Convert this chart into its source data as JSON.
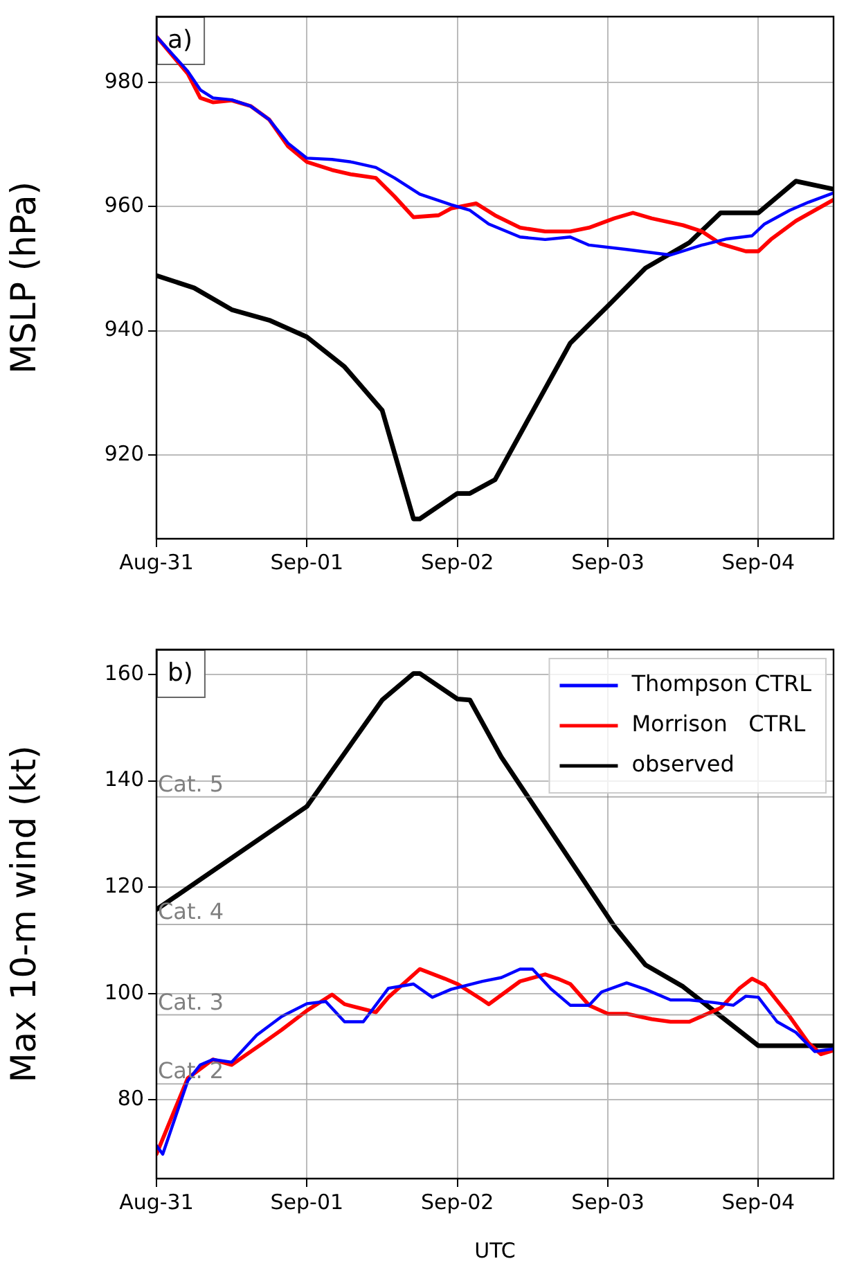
{
  "chart_data": [
    {
      "type": "line",
      "ylabel": "MSLP (hPa)",
      "annotations": [
        "a)"
      ],
      "xlim": [
        "--08-31",
        "--09-04T12:00"
      ],
      "xticks": [
        {
          "value": "--08-31",
          "label": "Aug-31"
        },
        {
          "value": "--09-01",
          "label": "Sep-01"
        },
        {
          "value": "--09-02",
          "label": "Sep-02"
        },
        {
          "value": "--09-03",
          "label": "Sep-03"
        },
        {
          "value": "--09-04",
          "label": "Sep-04"
        }
      ],
      "ylim": [
        906.5,
        990.6
      ],
      "yticks": [
        920,
        940,
        960,
        980
      ],
      "grid": true,
      "legend": false,
      "marker": "none",
      "line_style": "solid",
      "series": [
        {
          "color": "#0000ff",
          "x": [
            "--08-31T00:00",
            "--08-31T05:00",
            "--08-31T07:00",
            "--08-31T09:00",
            "--08-31T12:00",
            "--08-31T15:00",
            "--08-31T18:00",
            "--08-31T21:00",
            "--09-01T00:00",
            "--09-01T04:00",
            "--09-01T07:00",
            "--09-01T11:00",
            "--09-01T14:00",
            "--09-01T18:00",
            "--09-01T23:00",
            "--09-02T02:00",
            "--09-02T05:00",
            "--09-02T10:00",
            "--09-02T14:00",
            "--09-02T18:00",
            "--09-02T21:00",
            "--09-03T03:00",
            "--09-03T10:00",
            "--09-03T15:00",
            "--09-03T19:00",
            "--09-03T23:00",
            "--09-04T01:00",
            "--09-04T05:00",
            "--09-04T08:00",
            "--09-04T12:00"
          ],
          "values": [
            987.4,
            981.8,
            978.8,
            977.5,
            977.2,
            976.2,
            974,
            970.2,
            967.8,
            967.6,
            967.2,
            966.3,
            964.6,
            962,
            960.3,
            959.4,
            957.2,
            955.1,
            954.7,
            955.1,
            953.8,
            953.1,
            952.2,
            953.8,
            954.8,
            955.3,
            957.2,
            959.4,
            960.7,
            962.2
          ]
        },
        {
          "color": "#ff0000",
          "x": [
            "--08-31T00:00",
            "--08-31T05:00",
            "--08-31T07:00",
            "--08-31T09:00",
            "--08-31T12:00",
            "--08-31T15:00",
            "--08-31T18:00",
            "--08-31T21:00",
            "--09-01T00:00",
            "--09-01T04:00",
            "--09-01T07:00",
            "--09-01T11:00",
            "--09-01T14:00",
            "--09-01T17:00",
            "--09-01T21:00",
            "--09-01T23:00",
            "--09-02T03:00",
            "--09-02T06:00",
            "--09-02T10:00",
            "--09-02T14:00",
            "--09-02T18:00",
            "--09-02T21:00",
            "--09-03T01:00",
            "--09-03T04:00",
            "--09-03T07:00",
            "--09-03T12:00",
            "--09-03T15:00",
            "--09-03T18:00",
            "--09-03T22:00",
            "--09-04T00:00",
            "--09-04T02:00",
            "--09-04T06:00",
            "--09-04T12:00"
          ],
          "values": [
            987.4,
            981.4,
            977.5,
            976.8,
            977.1,
            976.2,
            974,
            969.7,
            967.2,
            965.9,
            965.2,
            964.6,
            961.6,
            958.3,
            958.6,
            959.7,
            960.5,
            958.6,
            956.6,
            956,
            956,
            956.6,
            958.1,
            959,
            958.1,
            957,
            956,
            954,
            952.8,
            952.8,
            954.7,
            957.7,
            961.1
          ]
        },
        {
          "color": "#000000",
          "x": [
            "--08-31T00:00",
            "--08-31T06:00",
            "--08-31T12:00",
            "--08-31T18:00",
            "--09-01T00:00",
            "--09-01T06:00",
            "--09-01T12:00",
            "--09-01T17:00",
            "--09-01T18:00",
            "--09-02T00:00",
            "--09-02T02:00",
            "--09-02T06:00",
            "--09-02T18:00",
            "--09-03T00:00",
            "--09-03T06:00",
            "--09-03T13:00",
            "--09-03T18:00",
            "--09-04T00:00",
            "--09-04T06:00",
            "--09-04T12:00"
          ],
          "values": [
            948.9,
            946.9,
            943.4,
            941.7,
            939,
            934.2,
            927.2,
            909.7,
            909.7,
            913.8,
            913.8,
            916,
            938,
            944,
            950.1,
            954.2,
            959,
            959,
            964.1,
            962.8
          ]
        }
      ]
    },
    {
      "type": "line",
      "xlabel": "UTC",
      "ylabel": "Max 10-m wind (kt)",
      "annotations": [
        "b)"
      ],
      "xlim": [
        "--08-31",
        "--09-04T12:00"
      ],
      "xticks": [
        {
          "value": "--08-31",
          "label": "Aug-31"
        },
        {
          "value": "--09-01",
          "label": "Sep-01"
        },
        {
          "value": "--09-02",
          "label": "Sep-02"
        },
        {
          "value": "--09-03",
          "label": "Sep-03"
        },
        {
          "value": "--09-04",
          "label": "Sep-04"
        }
      ],
      "ylim": [
        65.2,
        164.7
      ],
      "yticks": [
        80,
        100,
        120,
        140,
        160
      ],
      "grid": true,
      "legend": "top right",
      "marker": "none",
      "line_style": "solid",
      "ref_lines": [
        {
          "axis": "y",
          "value": 137,
          "label": "Cat. 5",
          "color": "#808080"
        },
        {
          "axis": "y",
          "value": 113,
          "label": "Cat. 4",
          "color": "#808080"
        },
        {
          "axis": "y",
          "value": 96,
          "label": "Cat. 3",
          "color": "#808080"
        },
        {
          "axis": "y",
          "value": 83,
          "label": "Cat. 2",
          "color": "#808080"
        }
      ],
      "series": [
        {
          "name": "Thompson CTRL",
          "color": "#0000ff",
          "x": [
            "--08-31T00:00",
            "--08-31T01:00",
            "--08-31T05:00",
            "--08-31T07:00",
            "--08-31T09:00",
            "--08-31T12:00",
            "--08-31T16:00",
            "--08-31T20:00",
            "--09-01T00:00",
            "--09-01T03:00",
            "--09-01T06:00",
            "--09-01T09:00",
            "--09-01T13:00",
            "--09-01T17:00",
            "--09-01T20:00",
            "--09-01T23:00",
            "--09-02T04:00",
            "--09-02T07:00",
            "--09-02T10:00",
            "--09-02T12:00",
            "--09-02T15:00",
            "--09-02T18:00",
            "--09-02T21:00",
            "--09-02T23:00",
            "--09-03T03:00",
            "--09-03T06:00",
            "--09-03T10:00",
            "--09-03T13:00",
            "--09-03T17:00",
            "--09-03T20:00",
            "--09-03T22:00",
            "--09-04T00:00",
            "--09-04T03:00",
            "--09-04T06:00",
            "--09-04T09:00",
            "--09-04T12:00"
          ],
          "values": [
            71.4,
            69.8,
            83.6,
            86.6,
            87.6,
            87.1,
            92.2,
            95.7,
            98.1,
            98.5,
            94.7,
            94.7,
            101,
            101.8,
            99.3,
            100.8,
            102.3,
            103,
            104.6,
            104.6,
            100.8,
            97.8,
            97.8,
            100.3,
            102,
            100.8,
            98.8,
            98.8,
            98.3,
            97.8,
            99.5,
            99.3,
            94.7,
            92.7,
            89.1,
            89.6
          ]
        },
        {
          "name": "Morrison   CTRL",
          "color": "#ff0000",
          "x": [
            "--08-31T00:00",
            "--08-31T05:00",
            "--08-31T09:00",
            "--08-31T12:00",
            "--08-31T17:00",
            "--08-31T20:00",
            "--09-01T00:00",
            "--09-01T04:00",
            "--09-01T06:00",
            "--09-01T11:00",
            "--09-01T13:00",
            "--09-01T18:00",
            "--09-01T22:00",
            "--09-02T00:00",
            "--09-02T04:00",
            "--09-02T05:00",
            "--09-02T10:00",
            "--09-02T14:00",
            "--09-02T16:00",
            "--09-02T18:00",
            "--09-02T21:00",
            "--09-03T00:00",
            "--09-03T03:00",
            "--09-03T07:00",
            "--09-03T10:00",
            "--09-03T13:00",
            "--09-03T18:00",
            "--09-03T21:00",
            "--09-03T23:00",
            "--09-04T01:00",
            "--09-04T05:00",
            "--09-04T08:00",
            "--09-04T10:00",
            "--09-04T12:00"
          ],
          "values": [
            69.8,
            84.1,
            87.6,
            86.6,
            90.7,
            93.2,
            96.8,
            99.8,
            98,
            96.5,
            99.3,
            104.6,
            102.8,
            101.8,
            98.8,
            98,
            102.3,
            103.6,
            102.8,
            101.8,
            97.8,
            96.2,
            96.2,
            95.2,
            94.7,
            94.7,
            97.3,
            101,
            102.8,
            101.6,
            95.7,
            90.7,
            88.6,
            89.3
          ]
        },
        {
          "name": "observed",
          "color": "#000000",
          "x": [
            "--08-31T00:00",
            "--09-01T00:00",
            "--09-01T12:00",
            "--09-01T17:00",
            "--09-01T18:00",
            "--09-02T00:00",
            "--09-02T02:00",
            "--09-02T07:00",
            "--09-03T01:00",
            "--09-03T06:00",
            "--09-03T12:00",
            "--09-04T00:00",
            "--09-04T12:00"
          ],
          "values": [
            115.8,
            135.2,
            155.2,
            160.2,
            160.2,
            155.4,
            155.2,
            144.5,
            112.7,
            105.4,
            101.3,
            90.2,
            90.2
          ]
        }
      ]
    }
  ]
}
